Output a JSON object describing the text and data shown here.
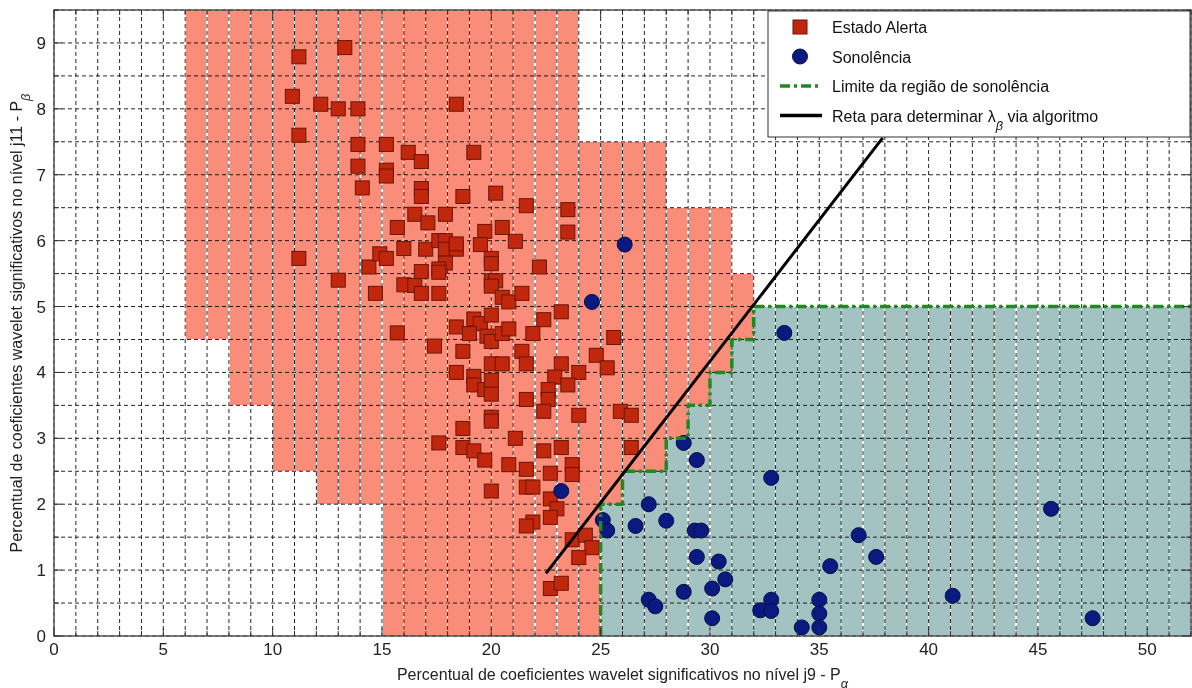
{
  "chart_data": {
    "type": "scatter",
    "xlabel": "Percentual de coeficientes wavelet significativos no nível j9 - P$_{α}$",
    "ylabel": "Percentual de coeficientes wavelet significativos no nível j11 - P$_{β}$",
    "xlim": [
      0,
      52
    ],
    "ylim": [
      0,
      9.5
    ],
    "xticks": [
      0,
      {
        "value": 1,
        "label": null
      },
      {
        "value": 2,
        "label": null
      },
      {
        "value": 3,
        "label": null
      },
      {
        "value": 4,
        "label": null
      },
      5,
      {
        "value": 6,
        "label": null
      },
      {
        "value": 7,
        "label": null
      },
      {
        "value": 8,
        "label": null
      },
      {
        "value": 9,
        "label": null
      },
      10,
      {
        "value": 11,
        "label": null
      },
      {
        "value": 12,
        "label": null
      },
      {
        "value": 13,
        "label": null
      },
      {
        "value": 14,
        "label": null
      },
      15,
      {
        "value": 16,
        "label": null
      },
      {
        "value": 17,
        "label": null
      },
      {
        "value": 18,
        "label": null
      },
      {
        "value": 19,
        "label": null
      },
      20,
      {
        "value": 21,
        "label": null
      },
      {
        "value": 22,
        "label": null
      },
      {
        "value": 23,
        "label": null
      },
      {
        "value": 24,
        "label": null
      },
      25,
      {
        "value": 26,
        "label": null
      },
      {
        "value": 27,
        "label": null
      },
      {
        "value": 28,
        "label": null
      },
      {
        "value": 29,
        "label": null
      },
      30,
      {
        "value": 31,
        "label": null
      },
      {
        "value": 32,
        "label": null
      },
      {
        "value": 33,
        "label": null
      },
      {
        "value": 34,
        "label": null
      },
      35,
      {
        "value": 36,
        "label": null
      },
      {
        "value": 37,
        "label": null
      },
      {
        "value": 38,
        "label": null
      },
      {
        "value": 39,
        "label": null
      },
      40,
      {
        "value": 41,
        "label": null
      },
      {
        "value": 42,
        "label": null
      },
      {
        "value": 43,
        "label": null
      },
      {
        "value": 44,
        "label": null
      },
      45,
      {
        "value": 46,
        "label": null
      },
      {
        "value": 47,
        "label": null
      },
      {
        "value": 48,
        "label": null
      },
      {
        "value": 49,
        "label": null
      },
      50,
      {
        "value": 51,
        "label": null
      },
      {
        "value": 52,
        "label": null
      }
    ],
    "yticks": [
      0,
      {
        "value": 0.5,
        "label": null
      },
      1,
      {
        "value": 1.5,
        "label": null
      },
      2,
      {
        "value": 2.5,
        "label": null
      },
      3,
      {
        "value": 3.5,
        "label": null
      },
      4,
      {
        "value": 4.5,
        "label": null
      },
      5,
      {
        "value": 5.5,
        "label": null
      },
      6,
      {
        "value": 6.5,
        "label": null
      },
      7,
      {
        "value": 7.5,
        "label": null
      },
      8,
      {
        "value": 8.5,
        "label": null
      },
      9,
      {
        "value": 9.5,
        "label": null
      }
    ],
    "grid": true,
    "legend": "top right",
    "series": [
      {
        "type": "bar",
        "color": "#f98d79",
        "x": [
          6.5,
          7.5,
          8.5,
          9.5,
          10.5,
          11.5,
          12.5,
          13.5,
          14.5,
          15.5,
          16.5,
          17.5,
          18.5,
          19.5,
          20.5,
          21.5,
          22.5,
          23.5,
          24.5,
          25.5,
          26.5,
          27.5,
          28.5,
          29.5,
          30.5,
          31.5
        ],
        "base": [
          4.5,
          4.5,
          3.5,
          3.5,
          2.5,
          2.5,
          2,
          2,
          2,
          0,
          0,
          0,
          0,
          0,
          0,
          0,
          0,
          0,
          0,
          2,
          2.5,
          2.5,
          3,
          3.5,
          4,
          4.5
        ],
        "values": [
          5,
          5,
          6,
          6,
          7,
          7,
          7.5,
          7.5,
          7.5,
          9.5,
          9.5,
          9.5,
          9.5,
          9.5,
          9.5,
          9.5,
          9.5,
          9.5,
          7.5,
          5.5,
          5,
          5,
          3.5,
          3,
          2.5,
          1
        ]
      },
      {
        "type": "bar",
        "color": "#a3c3c3",
        "x": [
          25.5,
          26.5,
          27.5,
          28.5,
          29.5,
          30.5,
          31.5,
          32.5,
          33.5,
          34.5,
          35.5,
          36.5,
          37.5,
          38.5,
          39.5,
          40.5,
          41.5,
          42.5,
          43.5,
          44.5,
          45.5,
          46.5,
          47.5,
          48.5,
          49.5,
          50.5,
          51.5
        ],
        "values": [
          2,
          2.5,
          2.5,
          3,
          3.5,
          4,
          4.5,
          5,
          5,
          5,
          5,
          5,
          5,
          5,
          5,
          5,
          5,
          5,
          5,
          5,
          5,
          5,
          5,
          5,
          5,
          5,
          5
        ]
      },
      {
        "name": "Estado Alerta",
        "color": "#c1270c",
        "marker": "square",
        "x": [
          11.2,
          13.3,
          10.9,
          12.2,
          13.0,
          13.9,
          11.2,
          13.9,
          15.2,
          13.9,
          15.2,
          15.2,
          14.1,
          11.2,
          13.0,
          14.4,
          14.9,
          15.2,
          14.7,
          15.7,
          15.7,
          16.0,
          16.0,
          18.4,
          16.2,
          16.8,
          19.2,
          16.8,
          16.8,
          18.7,
          20.2,
          16.5,
          17.9,
          17.1,
          19.7,
          19.5,
          17.0,
          17.6,
          17.9,
          17.9,
          18.4,
          17.9,
          17.6,
          20.0,
          20.0,
          20.0,
          20.2,
          16.5,
          16.8,
          17.6,
          18.4,
          19.2,
          19.5,
          20.0,
          21.6,
          23.5,
          23.5,
          20.5,
          21.1,
          18.4,
          17.6,
          22.2,
          16.8,
          20.0,
          20.5,
          20.8,
          21.4,
          23.2,
          22.4,
          19.0,
          19.8,
          20.0,
          20.5,
          20.8,
          21.9,
          25.6,
          17.4,
          18.7,
          21.4,
          24.8,
          25.3,
          18.4,
          20.0,
          20.5,
          21.6,
          23.2,
          24.0,
          22.9,
          19.2,
          19.2,
          19.7,
          20.0,
          20.0,
          21.6,
          22.6,
          22.6,
          23.5,
          22.4,
          24.0,
          25.9,
          26.4,
          20.0,
          18.7,
          17.6,
          18.7,
          19.2,
          19.7,
          20.0,
          21.1,
          20.8,
          21.6,
          21.6,
          21.9,
          22.4,
          23.2,
          22.7,
          23.7,
          23.7,
          20.0,
          22.7,
          23.0,
          22.7,
          21.9,
          21.6,
          23.7,
          24.3,
          24.6,
          24.0,
          22.7,
          23.2,
          26.4
        ],
        "values": [
          8.79,
          8.93,
          8.19,
          8.07,
          8.0,
          8.0,
          7.6,
          7.46,
          7.46,
          7.13,
          7.07,
          6.98,
          6.8,
          5.73,
          5.4,
          5.6,
          5.8,
          5.73,
          5.2,
          6.2,
          4.6,
          5.88,
          5.33,
          8.07,
          7.34,
          7.2,
          7.34,
          6.79,
          6.67,
          6.67,
          6.72,
          6.4,
          6.4,
          6.27,
          6.14,
          5.94,
          5.87,
          6.0,
          6.0,
          5.87,
          5.87,
          5.66,
          5.57,
          5.73,
          5.65,
          5.39,
          5.39,
          5.32,
          5.2,
          5.2,
          4.69,
          4.81,
          4.74,
          4.87,
          6.53,
          6.47,
          6.13,
          6.2,
          5.99,
          5.95,
          5.52,
          5.6,
          5.53,
          5.31,
          5.14,
          5.07,
          5.2,
          4.92,
          4.8,
          4.59,
          4.55,
          4.47,
          4.59,
          4.66,
          4.59,
          4.53,
          4.4,
          4.32,
          4.32,
          4.26,
          4.07,
          4.0,
          4.13,
          4.13,
          4.13,
          4.13,
          4.0,
          3.93,
          3.94,
          3.81,
          3.74,
          3.88,
          3.67,
          3.59,
          3.74,
          3.59,
          3.81,
          3.41,
          3.35,
          3.41,
          3.35,
          3.32,
          3.15,
          2.93,
          2.86,
          2.81,
          2.67,
          3.26,
          3.0,
          2.6,
          2.53,
          2.26,
          2.26,
          2.81,
          2.86,
          2.47,
          2.6,
          2.45,
          2.2,
          2.08,
          1.93,
          1.8,
          1.73,
          1.67,
          1.46,
          1.53,
          1.34,
          1.19,
          0.72,
          0.8,
          2.86
        ]
      },
      {
        "name": "Sonolência",
        "color": "#0a1a80",
        "marker": "circle",
        "x": [
          26.1,
          24.6,
          23.2,
          33.4,
          28.8,
          29.4,
          32.8,
          27.2,
          25.1,
          25.3,
          26.6,
          28.0,
          29.3,
          29.6,
          36.8,
          29.4,
          30.4,
          37.6,
          35.5,
          30.7,
          28.8,
          30.1,
          27.2,
          27.5,
          32.8,
          32.3,
          32.8,
          35.0,
          35.0,
          35.0,
          30.1,
          34.2,
          45.6,
          47.5,
          41.1
        ],
        "values": [
          5.94,
          5.07,
          2.2,
          4.6,
          2.93,
          2.67,
          2.4,
          2.0,
          1.76,
          1.6,
          1.67,
          1.75,
          1.6,
          1.6,
          1.53,
          1.2,
          1.13,
          1.2,
          1.06,
          0.86,
          0.67,
          0.72,
          0.55,
          0.45,
          0.55,
          0.39,
          0.38,
          0.55,
          0.34,
          0.13,
          0.27,
          0.13,
          1.93,
          0.27,
          0.61
        ]
      },
      {
        "type": "line",
        "name": "Limite da região de sonolência",
        "color": "#1f8a1f",
        "line_style": "dashed",
        "x": [
          25,
          25,
          26,
          26,
          28,
          28,
          29,
          29,
          30,
          30,
          31,
          31,
          32,
          32,
          52
        ],
        "values": [
          0,
          2,
          2,
          2.5,
          2.5,
          3,
          3,
          3.5,
          3.5,
          4,
          4,
          4.5,
          4.5,
          5,
          5
        ]
      },
      {
        "type": "line",
        "name": "Reta para determinar λ$_{β}$ via algoritmo",
        "color": "#000000",
        "line_style": "solid",
        "x": [
          22.5,
          37.9
        ],
        "values": [
          0.95,
          7.56
        ]
      }
    ]
  }
}
